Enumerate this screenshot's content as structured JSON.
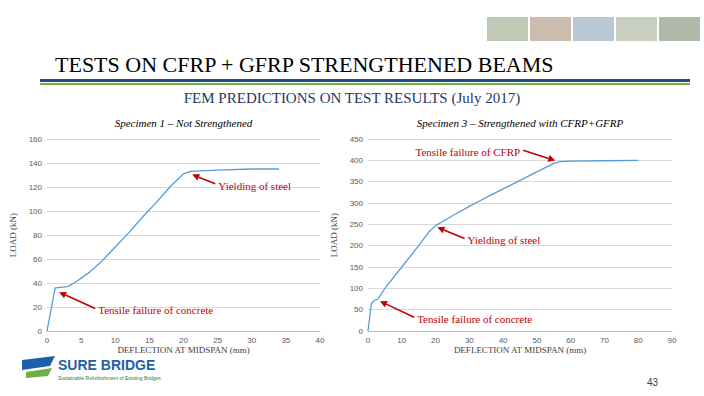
{
  "title": "TESTS ON CFRP + GFRP STRENGTHENED BEAMS",
  "subtitle": "FEM PREDICTIONS ON TEST RESULTS (July 2017)",
  "footer": {
    "logo": "SURE BRIDGE",
    "tagline": "Sustainable Refurbishment of Existing Bridges"
  },
  "page_number": "43",
  "chart_data": [
    {
      "type": "line",
      "title": "Specimen 1 – Not Strengthened",
      "xlabel": "DEFLECTION AT MIDSPAN (mm)",
      "ylabel": "LOAD (kN)",
      "x": [
        0,
        1.2,
        3,
        4,
        6,
        8,
        10,
        12,
        14,
        16,
        18,
        20,
        21,
        25,
        30,
        34
      ],
      "values": [
        0,
        36,
        37,
        40,
        48,
        58,
        70,
        82,
        95,
        107,
        120,
        131,
        133,
        134,
        135,
        135
      ],
      "color": "#5b9bd5",
      "xlim": [
        0,
        40
      ],
      "xticks": [
        0,
        5,
        10,
        15,
        20,
        25,
        30,
        35,
        40
      ],
      "ylim": [
        0,
        160
      ],
      "yticks": [
        0,
        20,
        40,
        60,
        80,
        100,
        120,
        140,
        160
      ],
      "grid": "y",
      "annotations": [
        {
          "text": "Yielding of steel",
          "x": 21,
          "y": 131
        },
        {
          "text": "Tensile failure of concrete",
          "x": 1.5,
          "y": 33
        }
      ]
    },
    {
      "type": "line",
      "title": "Specimen 3 – Strengthened with CFRP+GFRP",
      "xlabel": "DEFLECTION AT MIDSPAN (mm)",
      "ylabel": "LOAD (kN)",
      "x": [
        0,
        1,
        2,
        3,
        5,
        10,
        15,
        18,
        20,
        25,
        30,
        35,
        40,
        45,
        50,
        55,
        57,
        60,
        70,
        80
      ],
      "values": [
        0,
        65,
        72,
        75,
        100,
        150,
        200,
        232,
        247,
        270,
        292,
        313,
        333,
        353,
        373,
        393,
        397,
        398,
        399,
        400
      ],
      "color": "#5b9bd5",
      "xlim": [
        0,
        90
      ],
      "xticks": [
        0,
        10,
        20,
        30,
        40,
        50,
        60,
        70,
        80,
        90
      ],
      "ylim": [
        0,
        450
      ],
      "yticks": [
        0,
        50,
        100,
        150,
        200,
        250,
        300,
        350,
        400,
        450
      ],
      "grid": "y",
      "annotations": [
        {
          "text": "Tensile failure of CFRP",
          "x": 56,
          "y": 398
        },
        {
          "text": "Yielding of steel",
          "x": 20,
          "y": 245
        },
        {
          "text": "Tensile failure of concrete",
          "x": 3,
          "y": 72
        }
      ]
    }
  ]
}
